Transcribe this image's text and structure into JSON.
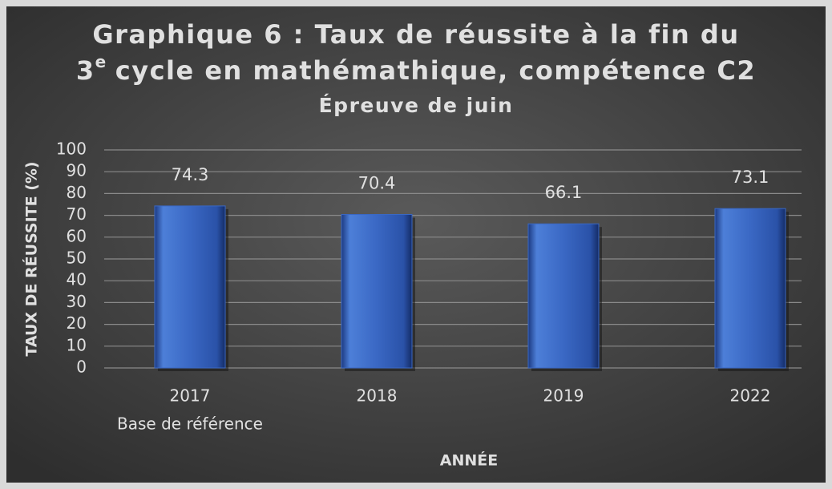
{
  "chart_data": {
    "type": "bar",
    "title": [
      "Graphique 6 : Taux de réussite à la fin du",
      "3",
      "e",
      "cycle en mathémathique, compétence C2"
    ],
    "subtitle": "Épreuve de juin",
    "categories": [
      "2017",
      "2018",
      "2019",
      "2022"
    ],
    "category_sublabels": [
      "Base de référence",
      null,
      null,
      null
    ],
    "values": [
      74.3,
      70.4,
      66.1,
      73.1
    ],
    "color": "#3a68c4",
    "ylim": [
      0,
      100
    ],
    "yticks": [
      0,
      10,
      20,
      30,
      40,
      50,
      60,
      70,
      80,
      90,
      100
    ],
    "grid": true,
    "xlabel": "ANNÉE",
    "ylabel": "TAUX DE RÉUSSITE (%)"
  }
}
